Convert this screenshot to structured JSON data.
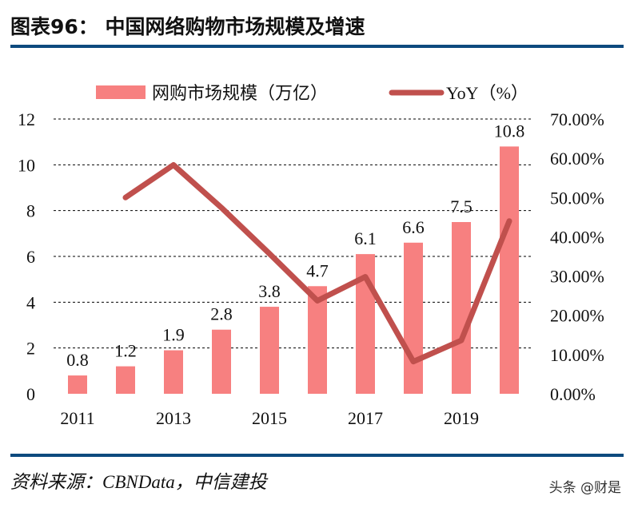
{
  "header": {
    "title": "图表96：  中国网络购物市场规模及增速"
  },
  "footer": {
    "source": "资料来源：CBNData，中信建投",
    "watermark": "头条 @财是"
  },
  "colors": {
    "bar": "#f78080",
    "line": "#c0504d",
    "rule": "#0d4a7e",
    "grid": "#000000"
  },
  "chart_data": {
    "type": "bar+line",
    "categories": [
      "2011",
      "2012",
      "2013",
      "2014",
      "2015",
      "2016",
      "2017",
      "2018",
      "2019",
      "2020"
    ],
    "x_tick_labels": [
      "2011",
      "",
      "2013",
      "",
      "2015",
      "",
      "2017",
      "",
      "2019",
      ""
    ],
    "series": [
      {
        "name": "网购市场规模（万亿）",
        "type": "bar",
        "axis": "left",
        "values": [
          0.8,
          1.2,
          1.9,
          2.8,
          3.8,
          4.7,
          6.1,
          6.6,
          7.5,
          10.8
        ],
        "data_labels": [
          "0.8",
          "1.2",
          "1.9",
          "2.8",
          "3.8",
          "4.7",
          "6.1",
          "6.6",
          "7.5",
          "10.8"
        ]
      },
      {
        "name": "YoY（%）",
        "type": "line",
        "axis": "right",
        "values": [
          null,
          50.0,
          58.3,
          47.4,
          35.7,
          23.7,
          29.8,
          8.2,
          13.6,
          44.0
        ]
      }
    ],
    "left_axis": {
      "ylim": [
        0,
        12
      ],
      "ticks": [
        "0",
        "2",
        "4",
        "6",
        "8",
        "10",
        "12"
      ]
    },
    "right_axis": {
      "ylim": [
        0,
        70
      ],
      "ticks": [
        "0.00%",
        "10.00%",
        "20.00%",
        "30.00%",
        "40.00%",
        "50.00%",
        "60.00%",
        "70.00%"
      ]
    },
    "grid": true,
    "legend": "top"
  }
}
